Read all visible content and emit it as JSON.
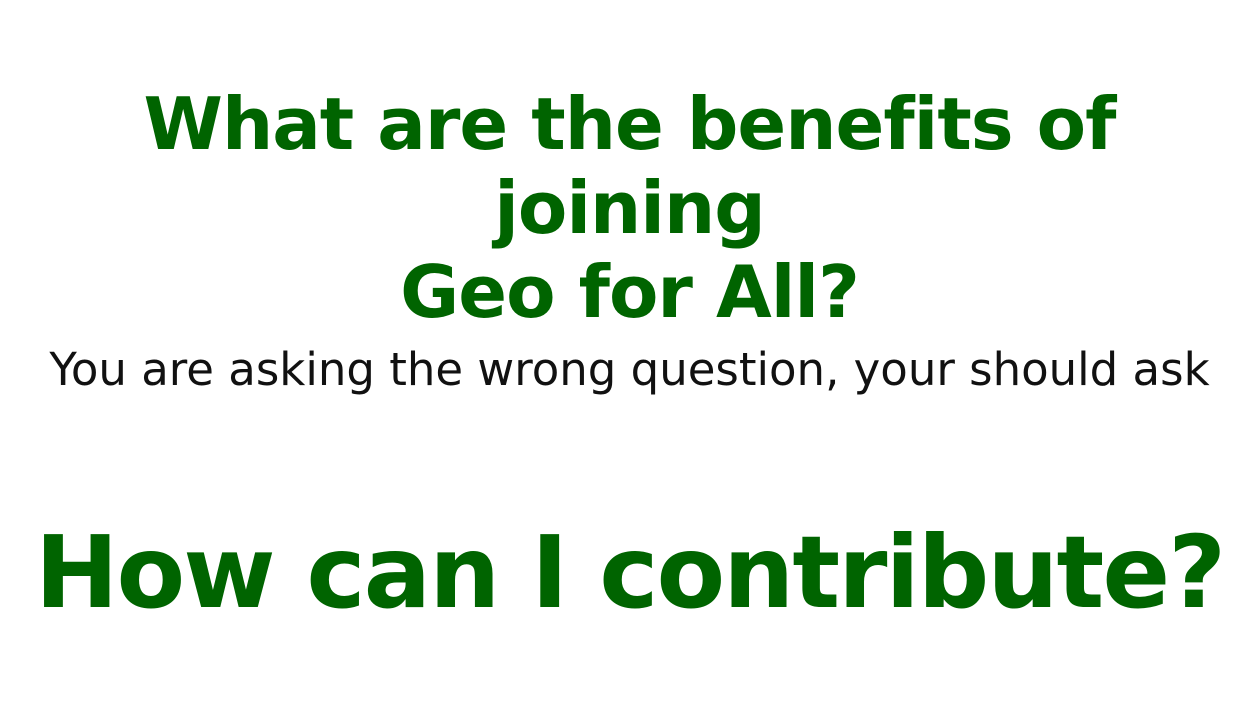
{
  "slide": {
    "heading_line1": "What are the benefits of joining",
    "heading_line2": "Geo for All?",
    "subtext": "You are asking the wrong question, your should ask",
    "callout": "How can I contribute?"
  },
  "colors": {
    "accent_green": "#006400",
    "text_black": "#111111",
    "background": "#ffffff"
  }
}
